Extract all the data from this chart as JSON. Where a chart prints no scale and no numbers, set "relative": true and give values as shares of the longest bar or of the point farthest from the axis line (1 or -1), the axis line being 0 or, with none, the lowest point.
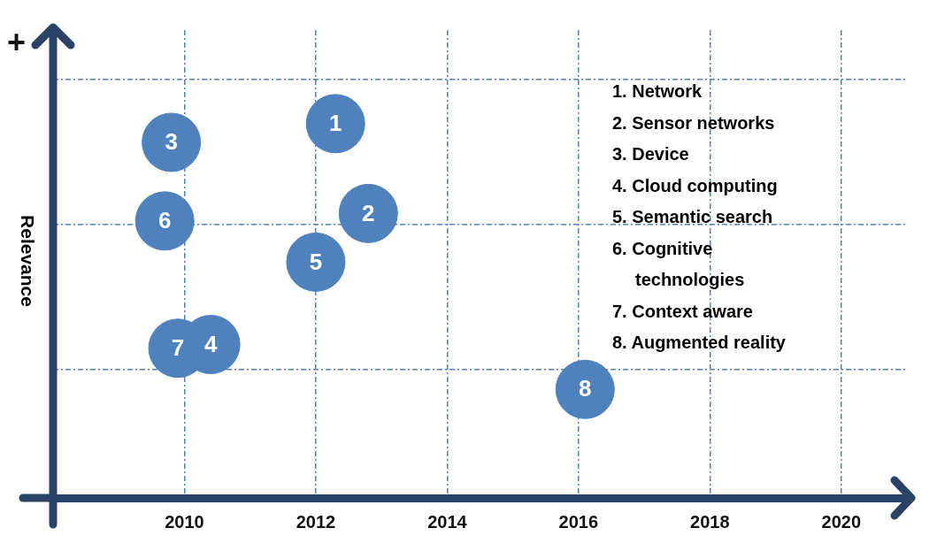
{
  "chart_data": {
    "type": "scatter",
    "ylabel": "Relevance",
    "x": [
      2012.3,
      2012.8,
      2009.8,
      2010.4,
      2012.0,
      2009.7,
      2009.9,
      2016.1
    ],
    "series": [
      {
        "color": "#4f81bd",
        "values": [
          1,
          0.76,
          0.95,
          0.41,
          0.63,
          0.74,
          0.4,
          0.29
        ]
      }
    ],
    "relative": true,
    "xlim": [
      2008,
      2021
    ],
    "xticks": [
      2010,
      2012,
      2014,
      2016,
      2018,
      2020
    ],
    "grid": true,
    "legend": false,
    "marker": "circle",
    "annotations": [
      "+",
      {
        "text": "1",
        "x": 2012.3,
        "y": 1
      },
      {
        "text": "2",
        "x": 2012.8,
        "y": 0.76
      },
      {
        "text": "3",
        "x": 2009.8,
        "y": 0.95
      },
      {
        "text": "4",
        "x": 2010.4,
        "y": 0.41
      },
      {
        "text": "5",
        "x": 2012.0,
        "y": 0.63
      },
      {
        "text": "6",
        "x": 2009.7,
        "y": 0.74
      },
      {
        "text": "7",
        "x": 2009.9,
        "y": 0.4
      },
      {
        "text": "8",
        "x": 2016.1,
        "y": 0.29
      },
      "1. Network",
      "2. Sensor networks",
      "3. Device",
      "4. Cloud computing",
      "5. Semantic search",
      "6. Cognitive technologies",
      "7. Context aware",
      "8. Augmented reality"
    ]
  }
}
